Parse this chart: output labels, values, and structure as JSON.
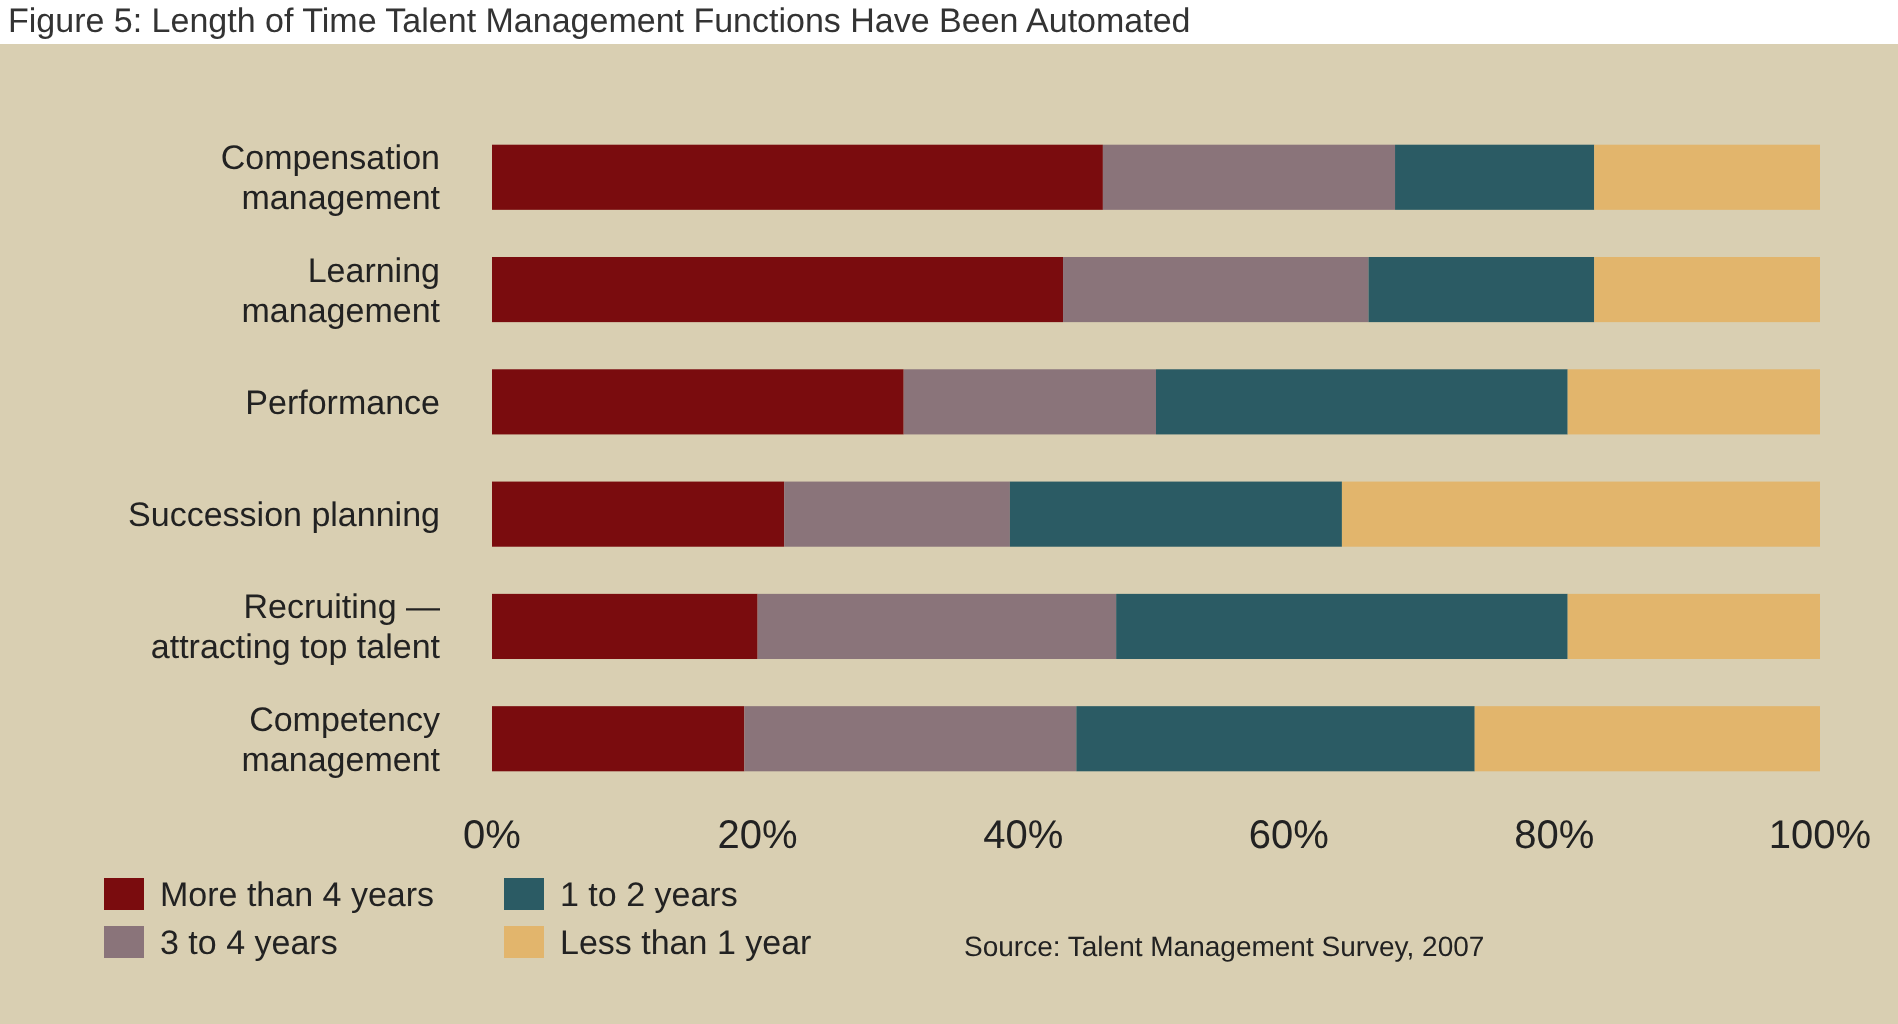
{
  "chart_data": {
    "type": "bar",
    "orientation": "horizontal",
    "stacked": true,
    "title": "Figure 5: Length of Time Talent Management Functions Have Been Automated",
    "categories": [
      "Compensation\nmanagement",
      "Learning\nmanagement",
      "Performance",
      "Succession planning",
      "Recruiting —\nattracting top talent",
      "Competency\nmanagement"
    ],
    "series": [
      {
        "name": "More than 4 years",
        "color": "#7a0c0e",
        "values": [
          46,
          43,
          31,
          22,
          20,
          19
        ]
      },
      {
        "name": "3 to 4 years",
        "color": "#8a747a",
        "values": [
          22,
          23,
          19,
          17,
          27,
          25
        ]
      },
      {
        "name": "1 to 2 years",
        "color": "#2b5b64",
        "values": [
          15,
          17,
          31,
          25,
          34,
          30
        ]
      },
      {
        "name": "Less than 1 year",
        "color": "#e2b56c",
        "values": [
          17,
          17,
          19,
          36,
          19,
          26
        ]
      }
    ],
    "xlim": [
      0,
      100
    ],
    "xticks": [
      {
        "value": 0,
        "label": "0%"
      },
      {
        "value": 20,
        "label": "20%"
      },
      {
        "value": 40,
        "label": "40%"
      },
      {
        "value": 60,
        "label": "60%"
      },
      {
        "value": 80,
        "label": "80%"
      },
      {
        "value": 100,
        "label": "100%"
      }
    ],
    "legend": "bottom left",
    "grid": false,
    "annotations": [
      "Source: Talent Management Survey, 2007"
    ]
  }
}
